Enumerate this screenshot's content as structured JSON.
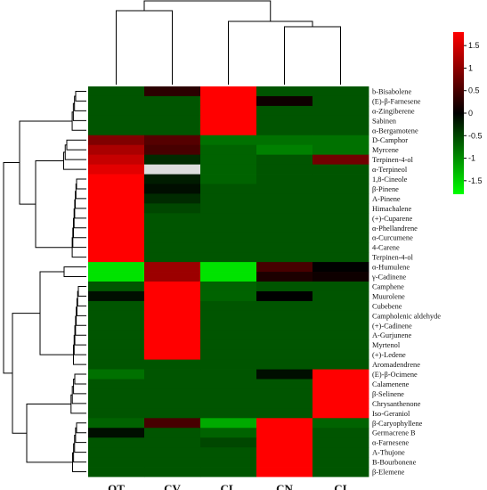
{
  "chart_data": {
    "type": "heatmap",
    "title": "",
    "xlabel": "",
    "ylabel": "",
    "columns": [
      "OT",
      "CV",
      "CL",
      "CN",
      "CI"
    ],
    "rows": [
      "b-Bisabolene",
      "(E)-β-Farnesene",
      "α-Zingiberene",
      "Sabinen",
      "α-Bergamotene",
      "D-Camphor",
      "Myrcene",
      "Terpinen-4-ol",
      "α-Terpineol",
      "1,8-Cineole",
      "β-Pinene",
      "A-Pinene",
      "Himachalene",
      "(+)-Cuparene",
      "α-Phellandrene",
      "α-Curcumene",
      "4-Carene",
      "Terpinen-4-ol",
      "α-Humulene",
      "γ-Cadinene",
      "Camphene",
      "Muurolene",
      "Cubebene",
      "Campholenic aldehyde",
      "(+)-Cadinene",
      "A-Gurjunene",
      "Myrtenol",
      "(+)-Ledene",
      "Aromadendrene",
      "(E)-β-Ocimene",
      "Calamenene",
      "β-Selinene",
      "Chrysanthenone",
      "Iso-Geraniol",
      "β-Caryophyllene",
      "Germacrene B",
      "α-Farnesene",
      "A-Thujone",
      "B-Bourbonene",
      "β-Elemene"
    ],
    "values": [
      [
        -0.6,
        0.3,
        1.8,
        -0.6,
        -0.6
      ],
      [
        -0.6,
        -0.6,
        1.8,
        0.1,
        -0.6
      ],
      [
        -0.6,
        -0.6,
        1.8,
        -0.6,
        -0.6
      ],
      [
        -0.6,
        -0.6,
        1.8,
        -0.6,
        -0.6
      ],
      [
        -0.6,
        -0.6,
        1.8,
        -0.6,
        -0.6
      ],
      [
        0.9,
        0.6,
        -0.8,
        -0.8,
        -0.8
      ],
      [
        1.2,
        0.5,
        -0.7,
        -0.9,
        -0.8
      ],
      [
        1.4,
        -0.3,
        -0.7,
        -0.6,
        0.8
      ],
      [
        1.6,
        null,
        -0.7,
        -0.6,
        -0.6
      ],
      [
        1.8,
        -0.2,
        -0.7,
        -0.6,
        -0.6
      ],
      [
        1.8,
        -0.1,
        -0.6,
        -0.6,
        -0.6
      ],
      [
        1.8,
        -0.3,
        -0.6,
        -0.6,
        -0.6
      ],
      [
        1.8,
        -0.5,
        -0.6,
        -0.6,
        -0.6
      ],
      [
        1.8,
        -0.6,
        -0.6,
        -0.6,
        -0.6
      ],
      [
        1.8,
        -0.6,
        -0.6,
        -0.6,
        -0.6
      ],
      [
        1.8,
        -0.6,
        -0.6,
        -0.6,
        -0.6
      ],
      [
        1.8,
        -0.6,
        -0.6,
        -0.6,
        -0.6
      ],
      [
        1.8,
        -0.6,
        -0.6,
        -0.6,
        -0.6
      ],
      [
        -1.6,
        1.1,
        -1.6,
        0.5,
        0.0
      ],
      [
        -1.6,
        1.1,
        -1.6,
        0.2,
        0.1
      ],
      [
        -0.6,
        1.8,
        -0.7,
        -0.6,
        -0.6
      ],
      [
        -0.1,
        1.8,
        -0.7,
        0.0,
        -0.6
      ],
      [
        -0.6,
        1.8,
        -0.6,
        -0.6,
        -0.6
      ],
      [
        -0.6,
        1.8,
        -0.6,
        -0.6,
        -0.6
      ],
      [
        -0.6,
        1.8,
        -0.6,
        -0.6,
        -0.6
      ],
      [
        -0.6,
        1.8,
        -0.6,
        -0.6,
        -0.6
      ],
      [
        -0.6,
        1.8,
        -0.6,
        -0.6,
        -0.6
      ],
      [
        -0.6,
        1.8,
        -0.6,
        -0.6,
        -0.6
      ],
      [
        -0.6,
        -0.6,
        -0.6,
        -0.6,
        -0.6
      ],
      [
        -0.8,
        -0.6,
        -0.6,
        -0.1,
        1.8
      ],
      [
        -0.6,
        -0.6,
        -0.6,
        -0.6,
        1.8
      ],
      [
        -0.6,
        -0.6,
        -0.6,
        -0.6,
        1.8
      ],
      [
        -0.6,
        -0.6,
        -0.6,
        -0.6,
        1.8
      ],
      [
        -0.6,
        -0.6,
        -0.6,
        -0.6,
        1.8
      ],
      [
        -0.7,
        0.5,
        -1.2,
        1.8,
        -0.7
      ],
      [
        -0.1,
        -0.6,
        -0.7,
        1.8,
        -0.6
      ],
      [
        -0.6,
        -0.6,
        -0.5,
        1.8,
        -0.6
      ],
      [
        -0.6,
        -0.6,
        -0.6,
        1.8,
        -0.6
      ],
      [
        -0.6,
        -0.6,
        -0.6,
        1.8,
        -0.6
      ],
      [
        -0.6,
        -0.6,
        -0.6,
        1.8,
        -0.6
      ]
    ],
    "scale": {
      "min": -1.8,
      "max": 1.8,
      "ticks": [
        "1.5",
        "1",
        "0.5",
        "0",
        "-0.5",
        "-1",
        "-1.5"
      ],
      "tick_values": [
        1.5,
        1,
        0.5,
        0,
        -0.5,
        -1,
        -1.5
      ],
      "low_color": "#00ff00",
      "mid_color": "#000000",
      "high_color": "#ff0000",
      "missing_color": "#dddddd"
    },
    "legend_position": "top-right",
    "grid": false,
    "column_dendrogram": true,
    "row_dendrogram": true
  }
}
